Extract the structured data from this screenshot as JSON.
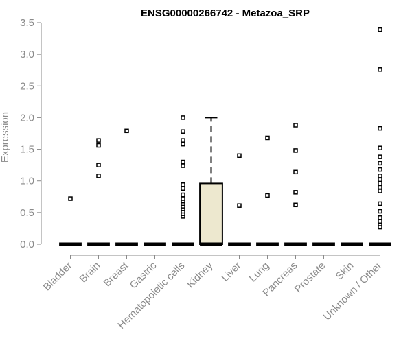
{
  "chart_data": {
    "type": "box",
    "title": "ENSG00000266742 - Metazoa_SRP",
    "xlabel": "",
    "ylabel": "Expression",
    "ylim": [
      0,
      3.5
    ],
    "yticks": [
      0.0,
      0.5,
      1.0,
      1.5,
      2.0,
      2.5,
      3.0,
      3.5
    ],
    "ytick_labels": [
      "0.0",
      "0.5",
      "1.0",
      "1.5",
      "2.0",
      "2.5",
      "3.0",
      "3.5"
    ],
    "categories": [
      "Bladder",
      "Brain",
      "Breast",
      "Gastric",
      "Hematopoietic cells",
      "Kidney",
      "Liver",
      "Lung",
      "Pancreas",
      "Prostate",
      "Skin",
      "Unknown / Other"
    ],
    "boxes": [
      {
        "category": "Bladder",
        "q1": 0,
        "median": 0,
        "q3": 0,
        "whisker_low": 0,
        "whisker_high": 0,
        "outliers": [
          0.72
        ]
      },
      {
        "category": "Brain",
        "q1": 0,
        "median": 0,
        "q3": 0,
        "whisker_low": 0,
        "whisker_high": 0,
        "outliers": [
          1.08,
          1.25,
          1.56,
          1.64
        ]
      },
      {
        "category": "Breast",
        "q1": 0,
        "median": 0,
        "q3": 0,
        "whisker_low": 0,
        "whisker_high": 0,
        "outliers": [
          1.79
        ]
      },
      {
        "category": "Gastric",
        "q1": 0,
        "median": 0,
        "q3": 0,
        "whisker_low": 0,
        "whisker_high": 0,
        "outliers": []
      },
      {
        "category": "Hematopoietic cells",
        "q1": 0,
        "median": 0,
        "q3": 0,
        "whisker_low": 0,
        "whisker_high": 0,
        "outliers": [
          0.44,
          0.48,
          0.52,
          0.56,
          0.6,
          0.64,
          0.68,
          0.72,
          0.78,
          0.88,
          0.94,
          1.24,
          1.3,
          1.58,
          1.64,
          1.78,
          2.0
        ]
      },
      {
        "category": "Kidney",
        "q1": 0,
        "median": 0,
        "q3": 0.96,
        "whisker_low": 0,
        "whisker_high": 2.0,
        "outliers": []
      },
      {
        "category": "Liver",
        "q1": 0,
        "median": 0,
        "q3": 0,
        "whisker_low": 0,
        "whisker_high": 0,
        "outliers": [
          0.61,
          1.4
        ]
      },
      {
        "category": "Lung",
        "q1": 0,
        "median": 0,
        "q3": 0,
        "whisker_low": 0,
        "whisker_high": 0,
        "outliers": [
          0.77,
          1.68
        ]
      },
      {
        "category": "Pancreas",
        "q1": 0,
        "median": 0,
        "q3": 0,
        "whisker_low": 0,
        "whisker_high": 0,
        "outliers": [
          0.62,
          0.82,
          1.14,
          1.48,
          1.88
        ]
      },
      {
        "category": "Prostate",
        "q1": 0,
        "median": 0,
        "q3": 0,
        "whisker_low": 0,
        "whisker_high": 0,
        "outliers": []
      },
      {
        "category": "Skin",
        "q1": 0,
        "median": 0,
        "q3": 0,
        "whisker_low": 0,
        "whisker_high": 0,
        "outliers": []
      },
      {
        "category": "Unknown / Other",
        "q1": 0,
        "median": 0,
        "q3": 0,
        "whisker_low": 0,
        "whisker_high": 0,
        "outliers": [
          0.27,
          0.32,
          0.36,
          0.42,
          0.52,
          0.64,
          0.84,
          0.9,
          0.96,
          1.02,
          1.08,
          1.18,
          1.28,
          1.38,
          1.52,
          1.83,
          2.76,
          3.39
        ]
      }
    ],
    "box_fill": "#ede8cf",
    "box_stroke": "#000000",
    "axis_color": "#8a8a8a",
    "grid": false,
    "legend": "none"
  }
}
